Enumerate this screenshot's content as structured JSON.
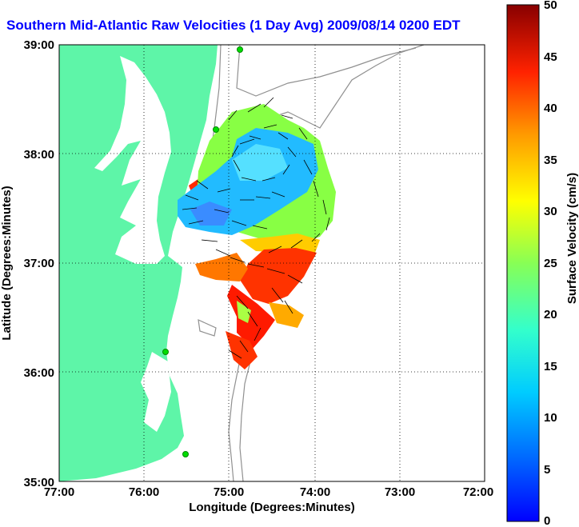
{
  "title": "Southern Mid-Atlantic Raw Velocities (1 Day Avg) 2009/08/14 0200 EDT",
  "axes": {
    "xlabel": "Longitude (Degrees:Minutes)",
    "ylabel": "Latitude (Degrees:Minutes)",
    "x_ticks": [
      "77:00",
      "76:00",
      "75:00",
      "74:00",
      "73:00",
      "72:00"
    ],
    "y_ticks": [
      "39:00",
      "38:00",
      "37:00",
      "36:00",
      "35:00"
    ]
  },
  "colorbar": {
    "label": "Surface Velocity (cm/s)",
    "ticks": [
      "50",
      "45",
      "40",
      "35",
      "30",
      "25",
      "20",
      "15",
      "10",
      "5",
      "0"
    ],
    "min": 0,
    "max": 50,
    "colormap": "jet"
  },
  "colors": {
    "land": "#5ef5a8",
    "ocean": "#ffffff",
    "title": "#0000ff",
    "bathymetry": "#909090",
    "station": "#00dd00"
  }
}
